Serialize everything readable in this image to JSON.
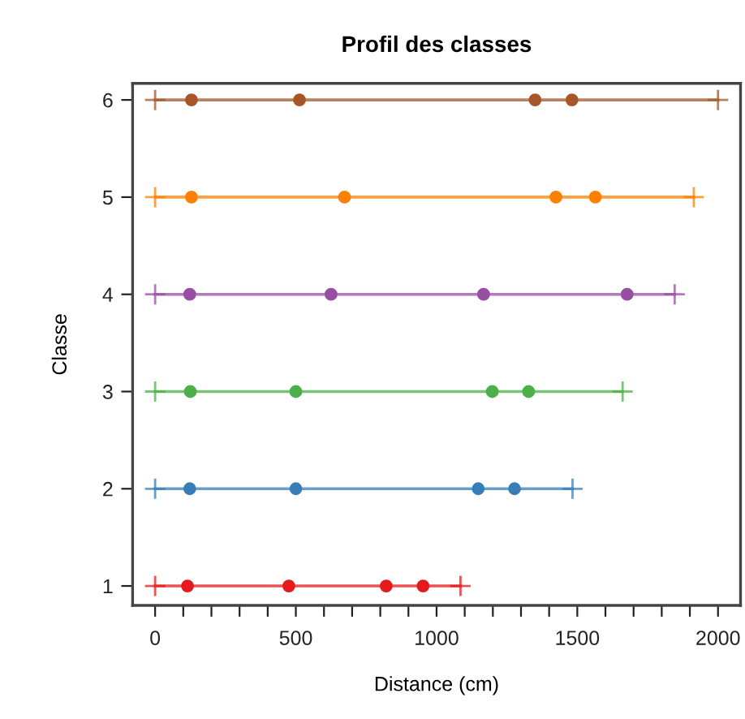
{
  "chart_data": {
    "type": "line",
    "title": "Profil des classes",
    "xlabel": "Distance (cm)",
    "ylabel": "Classe",
    "xlim": [
      -80,
      2080
    ],
    "ylim": [
      0.8,
      6.17
    ],
    "xticks": [
      0,
      {
        "value": 100,
        "label": null
      },
      {
        "value": 200,
        "label": null
      },
      {
        "value": 300,
        "label": null
      },
      {
        "value": 400,
        "label": null
      },
      500,
      {
        "value": 600,
        "label": null
      },
      {
        "value": 700,
        "label": null
      },
      {
        "value": 800,
        "label": null
      },
      {
        "value": 900,
        "label": null
      },
      1000,
      {
        "value": 1100,
        "label": null
      },
      {
        "value": 1200,
        "label": null
      },
      {
        "value": 1300,
        "label": null
      },
      {
        "value": 1400,
        "label": null
      },
      1500,
      {
        "value": 1600,
        "label": null
      },
      {
        "value": 1700,
        "label": null
      },
      {
        "value": 1800,
        "label": null
      },
      {
        "value": 1900,
        "label": null
      },
      2000
    ],
    "yticks": [
      1,
      2,
      3,
      4,
      5,
      6
    ],
    "grid": false,
    "legend": false,
    "series": [
      {
        "marker": "cross",
        "color": "#e41a1c",
        "x": [
          0,
          1085
        ],
        "values": [
          1,
          1
        ]
      },
      {
        "type": "scatter",
        "marker": "circle",
        "color": "#e41a1c",
        "x": [
          115,
          475,
          821,
          952
        ],
        "values": [
          1,
          1,
          1,
          1
        ]
      },
      {
        "marker": "cross",
        "color": "#377eb8",
        "x": [
          0,
          1483
        ],
        "values": [
          2,
          2
        ]
      },
      {
        "type": "scatter",
        "marker": "circle",
        "color": "#377eb8",
        "x": [
          123,
          500,
          1148,
          1277
        ],
        "values": [
          2,
          2,
          2,
          2
        ]
      },
      {
        "marker": "cross",
        "color": "#4daf4a",
        "x": [
          0,
          1661
        ],
        "values": [
          3,
          3
        ]
      },
      {
        "type": "scatter",
        "marker": "circle",
        "color": "#4daf4a",
        "x": [
          125,
          500,
          1198,
          1327
        ],
        "values": [
          3,
          3,
          3,
          3
        ]
      },
      {
        "marker": "cross",
        "color": "#984ea3",
        "x": [
          0,
          1846
        ],
        "values": [
          4,
          4
        ]
      },
      {
        "type": "scatter",
        "marker": "circle",
        "color": "#984ea3",
        "x": [
          123,
          625,
          1167,
          1677
        ],
        "values": [
          4,
          4,
          4,
          4
        ]
      },
      {
        "marker": "cross",
        "color": "#ff7f00",
        "x": [
          0,
          1914
        ],
        "values": [
          5,
          5
        ]
      },
      {
        "type": "scatter",
        "marker": "circle",
        "color": "#ff7f00",
        "x": [
          129,
          673,
          1424,
          1564
        ],
        "values": [
          5,
          5,
          5,
          5
        ]
      },
      {
        "marker": "cross",
        "color": "#a65628",
        "x": [
          0,
          2000
        ],
        "values": [
          6,
          6
        ]
      },
      {
        "type": "scatter",
        "marker": "circle",
        "color": "#a65628",
        "x": [
          129,
          513,
          1350,
          1481
        ],
        "values": [
          6,
          6,
          6,
          6
        ]
      }
    ]
  }
}
